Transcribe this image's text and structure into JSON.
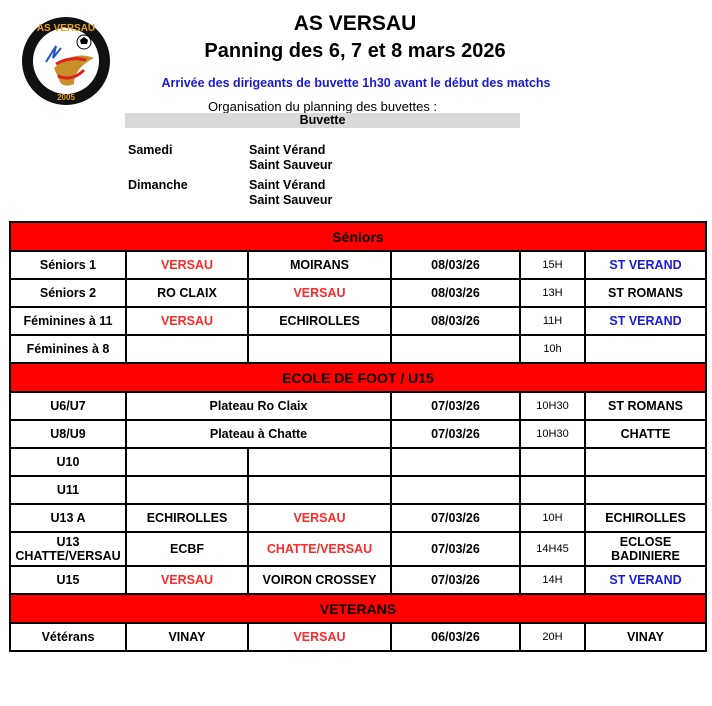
{
  "header": {
    "logo_text_top": "AS VERSAU",
    "logo_text_bottom": "2005",
    "title": "AS VERSAU",
    "subtitle": "Panning des 6, 7 et 8 mars 2026",
    "notice": "Arrivée des dirigeants de buvette 1h30 avant le début des matchs",
    "organisation": "Organisation du planning des buvettes :",
    "buvette_label": "Buvette"
  },
  "buvette": [
    {
      "day": "Samedi",
      "places": [
        "Saint Vérand",
        "Saint Sauveur"
      ]
    },
    {
      "day": "Dimanche",
      "places": [
        "Saint Vérand",
        "Saint Sauveur"
      ]
    }
  ],
  "colors": {
    "section": "#ff0000",
    "home": "#ff2a2a",
    "venue_blue": "#1a1add"
  },
  "schedule": [
    {
      "section": "Séniors"
    },
    {
      "cells": [
        {
          "t": "Séniors 1"
        },
        {
          "t": "VERSAU",
          "c": "home"
        },
        {
          "t": "MOIRANS"
        },
        {
          "t": "08/03/26"
        },
        {
          "t": "15H",
          "time": true
        },
        {
          "t": "ST VERAND",
          "c": "blue"
        }
      ]
    },
    {
      "cells": [
        {
          "t": "Séniors 2"
        },
        {
          "t": "RO CLAIX"
        },
        {
          "t": "VERSAU",
          "c": "home"
        },
        {
          "t": "08/03/26"
        },
        {
          "t": "13H",
          "time": true
        },
        {
          "t": "ST ROMANS"
        }
      ]
    },
    {
      "cells": [
        {
          "t": "Féminines à 11"
        },
        {
          "t": "VERSAU",
          "c": "home"
        },
        {
          "t": "ECHIROLLES"
        },
        {
          "t": "08/03/26"
        },
        {
          "t": "11H",
          "time": true
        },
        {
          "t": "ST VERAND",
          "c": "blue"
        }
      ]
    },
    {
      "cells": [
        {
          "t": "Féminines à 8"
        },
        {
          "t": ""
        },
        {
          "t": ""
        },
        {
          "t": ""
        },
        {
          "t": "10h",
          "time": true
        },
        {
          "t": ""
        }
      ]
    },
    {
      "section": "ECOLE DE FOOT / U15"
    },
    {
      "cells": [
        {
          "t": "U6/U7"
        },
        {
          "t": "Plateau Ro Claix",
          "span": 2
        },
        {
          "t": "07/03/26"
        },
        {
          "t": "10H30",
          "time": true
        },
        {
          "t": "ST ROMANS"
        }
      ]
    },
    {
      "cells": [
        {
          "t": "U8/U9"
        },
        {
          "t": "Plateau à Chatte",
          "span": 2
        },
        {
          "t": "07/03/26"
        },
        {
          "t": "10H30",
          "time": true
        },
        {
          "t": "CHATTE"
        }
      ]
    },
    {
      "cells": [
        {
          "t": "U10"
        },
        {
          "t": ""
        },
        {
          "t": ""
        },
        {
          "t": ""
        },
        {
          "t": "",
          "time": true
        },
        {
          "t": ""
        }
      ]
    },
    {
      "cells": [
        {
          "t": "U11"
        },
        {
          "t": ""
        },
        {
          "t": ""
        },
        {
          "t": ""
        },
        {
          "t": "",
          "time": true
        },
        {
          "t": ""
        }
      ]
    },
    {
      "cells": [
        {
          "t": "U13 A"
        },
        {
          "t": "ECHIROLLES"
        },
        {
          "t": "VERSAU",
          "c": "home"
        },
        {
          "t": "07/03/26"
        },
        {
          "t": "10H",
          "time": true
        },
        {
          "t": "ECHIROLLES"
        }
      ]
    },
    {
      "tall": true,
      "cells": [
        {
          "t": "U13 CHATTE/VERSAU"
        },
        {
          "t": "ECBF"
        },
        {
          "t": "CHATTE/VERSAU",
          "c": "home"
        },
        {
          "t": "07/03/26"
        },
        {
          "t": "14H45",
          "time": true
        },
        {
          "t": "ECLOSE BADINIERE"
        }
      ]
    },
    {
      "cells": [
        {
          "t": "U15"
        },
        {
          "t": "VERSAU",
          "c": "home"
        },
        {
          "t": "VOIRON CROSSEY"
        },
        {
          "t": "07/03/26"
        },
        {
          "t": "14H",
          "time": true
        },
        {
          "t": "ST VERAND",
          "c": "blue"
        }
      ]
    },
    {
      "section": "VETERANS"
    },
    {
      "cells": [
        {
          "t": "Vétérans"
        },
        {
          "t": "VINAY"
        },
        {
          "t": "VERSAU",
          "c": "home"
        },
        {
          "t": "06/03/26"
        },
        {
          "t": "20H",
          "time": true
        },
        {
          "t": "VINAY"
        }
      ]
    }
  ]
}
